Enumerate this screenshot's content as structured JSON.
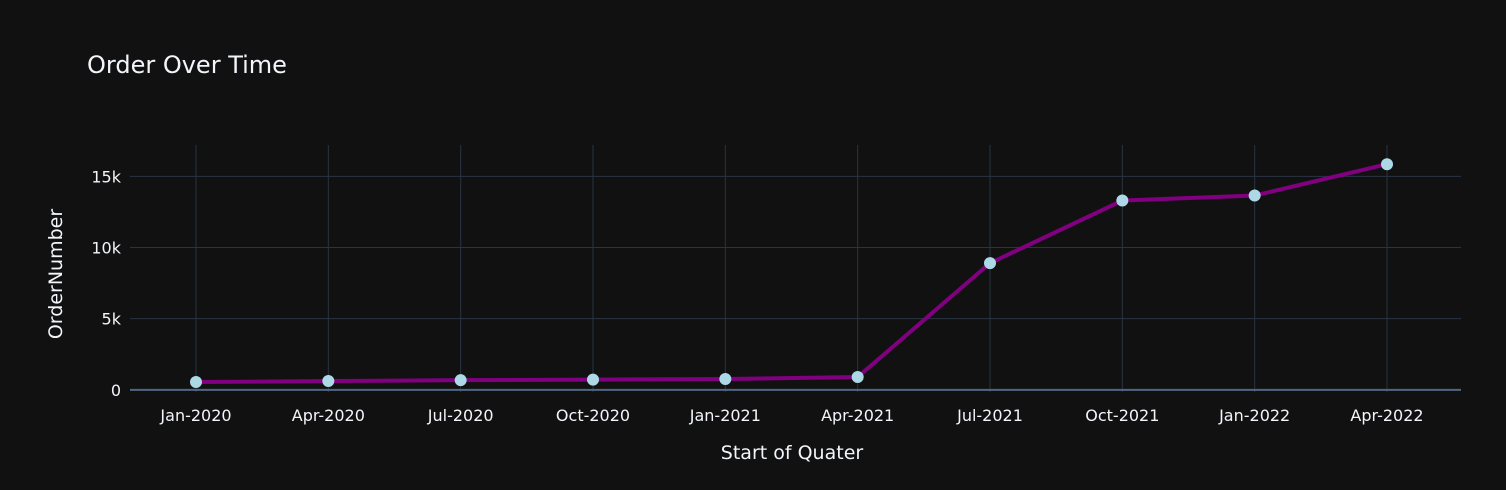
{
  "chart_data": {
    "type": "line",
    "title": "Order Over Time",
    "xlabel": "Start of Quater",
    "ylabel": "OrderNumber",
    "x": [
      "Jan-2020",
      "Apr-2020",
      "Jul-2020",
      "Oct-2020",
      "Jan-2021",
      "Apr-2021",
      "Jul-2021",
      "Oct-2021",
      "Jan-2022",
      "Apr-2022"
    ],
    "series": [
      {
        "values": [
          550,
          620,
          680,
          720,
          760,
          900,
          8900,
          13300,
          13650,
          15850
        ]
      }
    ],
    "ylim": [
      -150,
      17200
    ],
    "y_ticks": [
      0,
      5000,
      10000,
      15000
    ],
    "y_tick_labels": [
      "0",
      "5k",
      "10k",
      "15k"
    ],
    "grid": true,
    "colors": {
      "background": "#111111",
      "line": "#800080",
      "marker": "#add8e6",
      "grid": "#283442",
      "zero_line": "#506784",
      "text": "#f2f5fa"
    }
  }
}
